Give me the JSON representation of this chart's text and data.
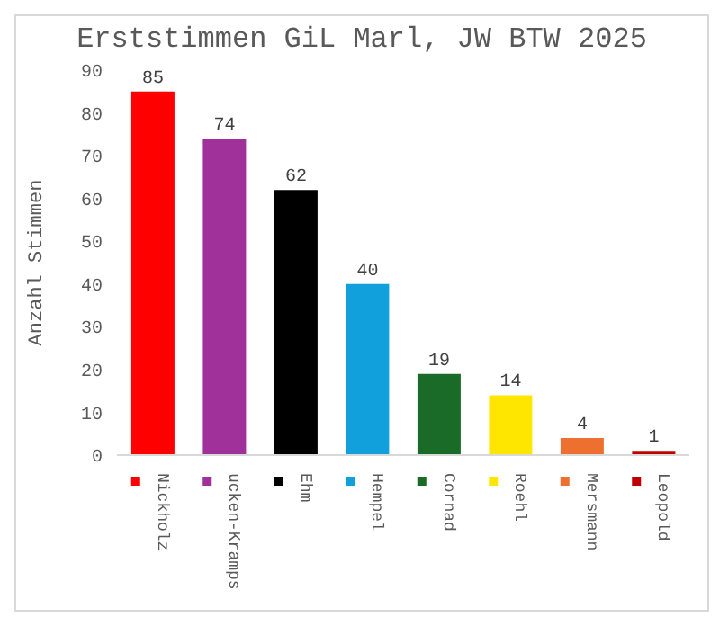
{
  "chart_data": {
    "type": "bar",
    "title": "Erststimmen GiL Marl, JW BTW 2025",
    "ylabel": "Anzahl Stimmen",
    "categories": [
      "Nickholz",
      "ucken-Kramps",
      "Ehm",
      "Hempel",
      "Cornad",
      "Roehl",
      "Mersmann",
      "Leopold"
    ],
    "values": [
      85,
      74,
      62,
      40,
      19,
      14,
      4,
      1
    ],
    "colors": [
      "#ff0000",
      "#a0309a",
      "#000000",
      "#12a0dc",
      "#1a6b28",
      "#ffe600",
      "#ed7031",
      "#c00000"
    ],
    "ylim": [
      0,
      90
    ],
    "yticks": [
      0,
      10,
      20,
      30,
      40,
      50,
      60,
      70,
      80,
      90
    ],
    "data_labels": true
  }
}
